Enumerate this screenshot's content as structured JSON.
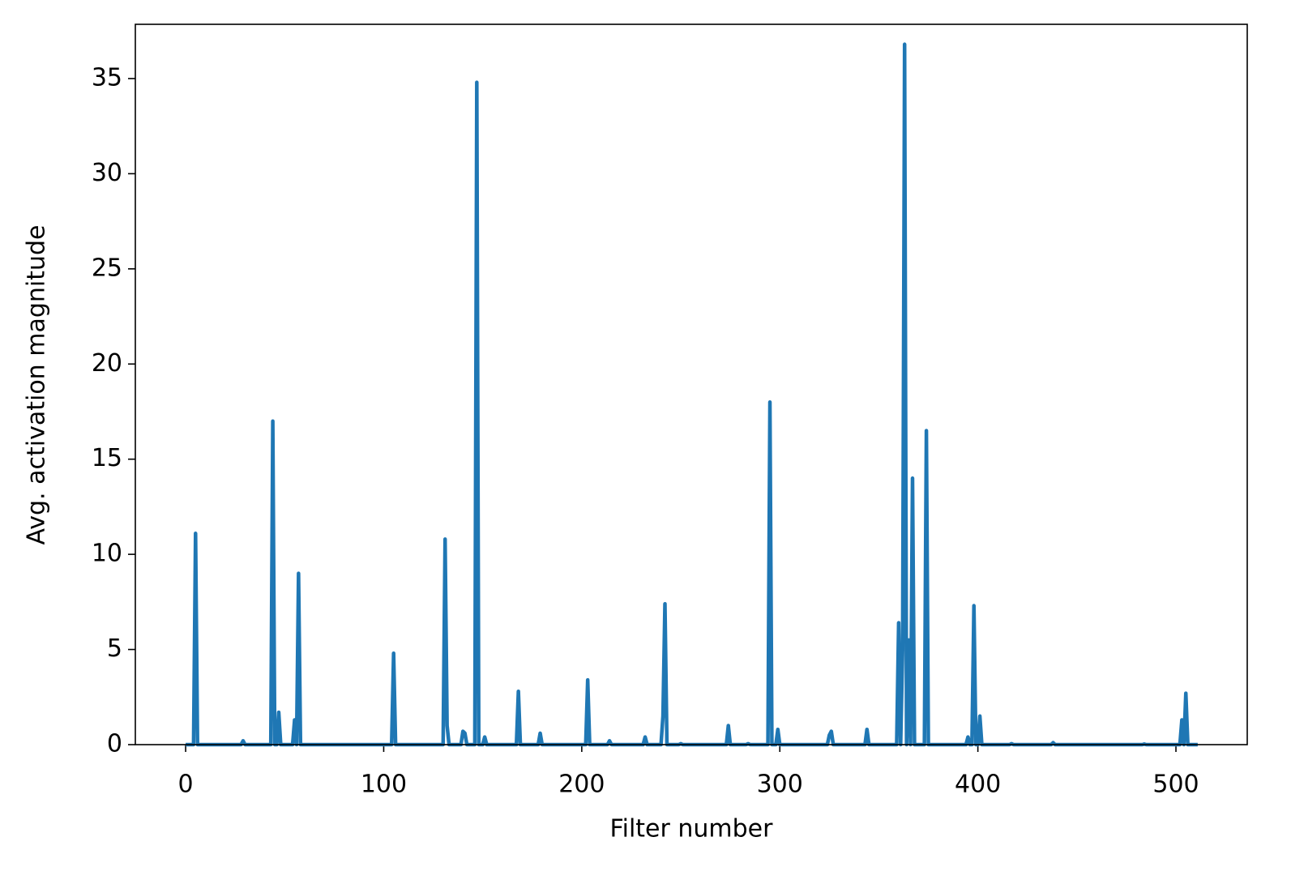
{
  "chart_data": {
    "type": "line",
    "x_label": "Filter number",
    "y_label": "Avg. activation magnitude",
    "series": [
      {
        "color": "#1f77b4",
        "x": [
          0,
          4,
          5,
          6,
          28,
          29,
          30,
          43,
          44,
          45,
          46,
          47,
          48,
          54,
          55,
          56,
          57,
          58,
          104,
          105,
          106,
          130,
          131,
          132,
          133,
          139,
          140,
          141,
          142,
          146,
          147,
          148,
          150,
          151,
          152,
          167,
          168,
          169,
          178,
          179,
          180,
          202,
          203,
          204,
          213,
          214,
          215,
          231,
          232,
          233,
          240,
          241,
          242,
          243,
          249,
          250,
          251,
          273,
          274,
          275,
          283,
          284,
          285,
          294,
          295,
          296,
          298,
          299,
          300,
          324,
          325,
          326,
          327,
          343,
          344,
          345,
          359,
          360,
          361,
          362,
          363,
          364,
          365,
          366,
          367,
          368,
          373,
          374,
          375,
          394,
          395,
          396,
          397,
          398,
          399,
          400,
          401,
          402,
          416,
          417,
          418,
          437,
          438,
          439,
          483,
          484,
          485,
          502,
          503,
          504,
          505,
          506,
          511
        ],
        "values": [
          0,
          0,
          11.1,
          0,
          0,
          0.2,
          0,
          0,
          17.0,
          0,
          0,
          1.7,
          0,
          0,
          1.3,
          0,
          9.0,
          0,
          0,
          4.8,
          0,
          0,
          10.8,
          1.0,
          0,
          0,
          0.7,
          0.6,
          0,
          0,
          34.8,
          0,
          0,
          0.4,
          0,
          0,
          2.8,
          0,
          0,
          0.6,
          0,
          0,
          3.4,
          0,
          0,
          0.2,
          0,
          0,
          0.4,
          0,
          0,
          1.5,
          7.4,
          0,
          0,
          0.05,
          0,
          0,
          1.0,
          0,
          0,
          0.05,
          0,
          0,
          18.0,
          0,
          0,
          0.8,
          0,
          0,
          0.5,
          0.7,
          0,
          0,
          0.8,
          0,
          0,
          6.4,
          0,
          5.0,
          36.8,
          0,
          5.5,
          0,
          14.0,
          0,
          0,
          16.5,
          0,
          0,
          0.4,
          0,
          0,
          7.3,
          0,
          0,
          1.5,
          0,
          0,
          0.05,
          0,
          0,
          0.1,
          0,
          0,
          0.03,
          0,
          0,
          1.3,
          0,
          2.7,
          0,
          0
        ]
      }
    ],
    "xlim": [
      -25.4,
      536
    ],
    "ylim": [
      0,
      37.85
    ],
    "xticks": [
      0,
      100,
      200,
      300,
      400,
      500
    ],
    "yticks": [
      0,
      5,
      10,
      15,
      20,
      25,
      30,
      35
    ]
  }
}
